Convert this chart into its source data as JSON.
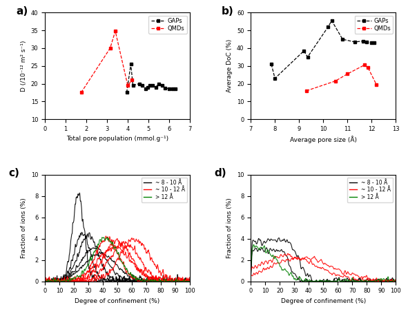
{
  "panel_a": {
    "title": "a)",
    "xlabel": "Total pore population (mmol.g⁻¹)",
    "ylabel": "D (/10⁻¹² m² s⁻¹)",
    "xlim": [
      0,
      7
    ],
    "ylim": [
      10,
      40
    ],
    "yticks": [
      10,
      15,
      20,
      25,
      30,
      35,
      40
    ],
    "xticks": [
      0,
      1,
      2,
      3,
      4,
      5,
      6,
      7
    ],
    "GAPs_x": [
      3.95,
      4.15,
      4.25,
      4.55,
      4.7,
      4.85,
      4.95,
      5.05,
      5.2,
      5.35,
      5.5,
      5.65,
      5.8,
      6.0,
      6.15,
      6.3
    ],
    "GAPs_y": [
      17.5,
      25.5,
      19.5,
      20.0,
      19.5,
      18.5,
      19.0,
      19.5,
      19.5,
      19.0,
      20.0,
      19.5,
      18.8,
      18.6,
      18.5,
      18.5
    ],
    "QMDs_x": [
      1.75,
      3.15,
      3.4,
      4.0,
      4.2
    ],
    "QMDs_y": [
      17.5,
      30.0,
      34.8,
      19.5,
      21.0
    ],
    "GAPs_color": "black",
    "QMDs_color": "red",
    "legend_labels": [
      "GAPs",
      "QMDs"
    ]
  },
  "panel_b": {
    "title": "b)",
    "xlabel": "Average pore size (Å)",
    "ylabel": "Average DoC (%)",
    "xlim": [
      7,
      13
    ],
    "ylim": [
      0,
      60
    ],
    "yticks": [
      0,
      10,
      20,
      30,
      40,
      50,
      60
    ],
    "xticks": [
      7,
      8,
      9,
      10,
      11,
      12,
      13
    ],
    "GAPs_x": [
      7.85,
      8.0,
      9.2,
      9.35,
      10.2,
      10.35,
      10.8,
      11.3,
      11.65,
      11.8,
      12.0,
      12.1
    ],
    "GAPs_y": [
      31.0,
      23.0,
      38.5,
      35.0,
      52.0,
      55.5,
      45.0,
      43.5,
      44.0,
      43.5,
      43.0,
      43.0
    ],
    "QMDs_x": [
      9.3,
      10.5,
      11.0,
      11.7,
      11.85,
      12.2
    ],
    "QMDs_y": [
      16.0,
      21.5,
      25.5,
      30.5,
      29.0,
      19.5
    ],
    "GAPs_color": "black",
    "QMDs_color": "red",
    "legend_labels": [
      "GAPs",
      "QMDs"
    ]
  },
  "panel_c": {
    "title": "c)",
    "xlabel": "Degree of confinement (%)",
    "ylabel": "Fraction of ions (%)",
    "xlim": [
      0,
      100
    ],
    "ylim": [
      0,
      10
    ],
    "yticks": [
      0,
      2,
      4,
      6,
      8,
      10
    ],
    "xticks": [
      0,
      10,
      20,
      30,
      40,
      50,
      60,
      70,
      80,
      90,
      100
    ],
    "black_curves": [
      [
        23,
        4.0,
        8.0
      ],
      [
        26,
        5.5,
        4.5
      ],
      [
        30,
        7.0,
        4.2
      ],
      [
        34,
        9.0,
        3.1
      ],
      [
        38,
        11.0,
        2.6
      ]
    ],
    "red_curves": [
      [
        43,
        8.0,
        4.0
      ],
      [
        50,
        9.5,
        3.8
      ],
      [
        55,
        10.0,
        3.6
      ],
      [
        62,
        10.0,
        4.0
      ],
      [
        48,
        11.5,
        3.2
      ]
    ],
    "green_curves": [
      [
        42,
        9.0,
        4.0
      ]
    ],
    "legend_labels": [
      "~ 8 - 10 Å",
      "~ 10 - 12 Å",
      "> 12 Å"
    ],
    "legend_colors": [
      "black",
      "red",
      "green"
    ]
  },
  "panel_d": {
    "title": "d)",
    "xlabel": "Degree of confinement (%)",
    "ylabel": "Fraction of ions (%)",
    "xlim": [
      0,
      100
    ],
    "ylim": [
      0,
      10
    ],
    "yticks": [
      0,
      2,
      4,
      6,
      8,
      10
    ],
    "xticks": [
      0,
      10,
      20,
      30,
      40,
      50,
      60,
      70,
      80,
      90,
      100
    ],
    "legend_labels": [
      "~ 8 - 10 Å",
      "~ 10 - 12 Å",
      "> 12 Å"
    ],
    "legend_colors": [
      "black",
      "red",
      "green"
    ]
  }
}
